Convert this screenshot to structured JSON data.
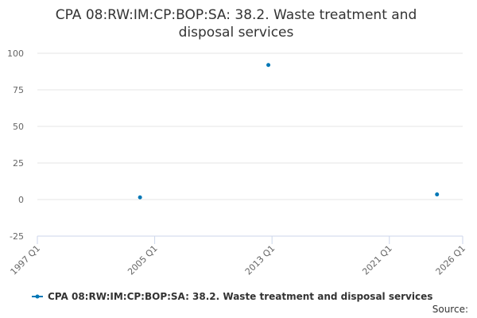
{
  "chart_data": {
    "type": "line",
    "title_lines": [
      "CPA 08:RW:IM:CP:BOP:SA: 38.2. Waste treatment and",
      "disposal services"
    ],
    "x": [
      "2004 Q1",
      "2012 Q4",
      "2024 Q2"
    ],
    "series": [
      {
        "name": "CPA 08:RW:IM:CP:BOP:SA: 38.2. Waste treatment and disposal services",
        "color": "#0077b6",
        "values": [
          1.5,
          92,
          3.5
        ]
      }
    ],
    "xlim": [
      "1997 Q1",
      "2026 Q1"
    ],
    "xticks": [
      "1997 Q1",
      "2005 Q1",
      "2013 Q1",
      "2021 Q1",
      "2026 Q1"
    ],
    "ylim": [
      -25,
      100
    ],
    "yticks": [
      -25,
      0,
      25,
      50,
      75,
      100
    ],
    "grid": true,
    "legend": "bottom",
    "source": "Source:"
  }
}
